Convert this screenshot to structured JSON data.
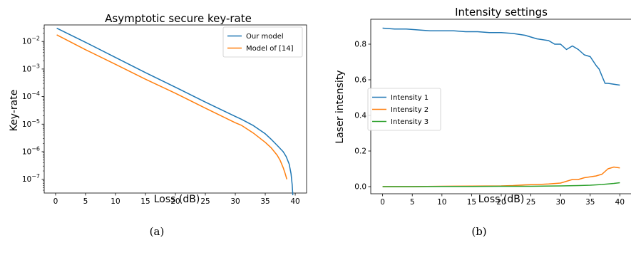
{
  "chart_data": [
    {
      "type": "line",
      "title": "Asymptotic secure key-rate",
      "xlabel": "Loss (dB)",
      "ylabel": "Key-rate",
      "xlim": [
        -1.9,
        41.9
      ],
      "ylim_log10": [
        -7.5,
        -1.4
      ],
      "yscale": "log",
      "x_ticks": [
        "0",
        "5",
        "10",
        "15",
        "20",
        "25",
        "30",
        "35",
        "40"
      ],
      "y_ticks": [
        "10^-7",
        "10^-6",
        "10^-5",
        "10^-4",
        "10^-3",
        "10^-2"
      ],
      "legend_position": "upper right",
      "caption": "(a)",
      "series": [
        {
          "name": "Our model",
          "color": "#1f77b4",
          "x": [
            0.2,
            5,
            10,
            15,
            20,
            25,
            30,
            31,
            33,
            35,
            36,
            37,
            38,
            38.5,
            39,
            39.3,
            39.5,
            39.6
          ],
          "y_log10": [
            -1.52,
            -2.03,
            -2.58,
            -3.13,
            -3.66,
            -4.2,
            -4.72,
            -4.82,
            -5.05,
            -5.35,
            -5.55,
            -5.77,
            -6.0,
            -6.18,
            -6.45,
            -6.8,
            -7.2,
            -7.58
          ]
        },
        {
          "name": "Model of [14]",
          "color": "#ff7f0e",
          "x": [
            0.2,
            5,
            10,
            15,
            20,
            25,
            30,
            31,
            33,
            35,
            36,
            37,
            37.5,
            38,
            38.3,
            38.6
          ],
          "y_log10": [
            -1.76,
            -2.3,
            -2.83,
            -3.37,
            -3.88,
            -4.42,
            -4.95,
            -5.04,
            -5.32,
            -5.66,
            -5.86,
            -6.13,
            -6.32,
            -6.58,
            -6.78,
            -7.0
          ]
        }
      ]
    },
    {
      "type": "line",
      "title": "Intensity settings",
      "xlabel": "Loss (dB)",
      "ylabel": "Laser intensity",
      "xlim": [
        -2,
        42
      ],
      "ylim": [
        -0.04,
        0.94
      ],
      "x_ticks": [
        "0",
        "5",
        "10",
        "15",
        "20",
        "25",
        "30",
        "35",
        "40"
      ],
      "y_ticks": [
        "0.0",
        "0.2",
        "0.4",
        "0.6",
        "0.8"
      ],
      "legend_position": "center left",
      "caption": "(b)",
      "series": [
        {
          "name": "Intensity 1",
          "color": "#1f77b4",
          "x": [
            0,
            2,
            4,
            6,
            8,
            10,
            12,
            14,
            16,
            18,
            20,
            22,
            24,
            26,
            28,
            29,
            30,
            31,
            32,
            33,
            34,
            35,
            36,
            36.5,
            37,
            37.5,
            38,
            39,
            40
          ],
          "y": [
            0.89,
            0.885,
            0.885,
            0.88,
            0.875,
            0.875,
            0.875,
            0.87,
            0.87,
            0.865,
            0.865,
            0.86,
            0.85,
            0.83,
            0.82,
            0.8,
            0.8,
            0.77,
            0.79,
            0.77,
            0.74,
            0.73,
            0.68,
            0.66,
            0.62,
            0.58,
            0.58,
            0.575,
            0.57
          ]
        },
        {
          "name": "Intensity 2",
          "color": "#ff7f0e",
          "x": [
            0,
            5,
            10,
            15,
            20,
            22,
            24,
            26,
            28,
            30,
            31,
            32,
            33,
            34,
            35,
            36,
            37,
            38,
            39,
            40
          ],
          "y": [
            0.0,
            0.0,
            0.002,
            0.003,
            0.004,
            0.006,
            0.01,
            0.012,
            0.015,
            0.02,
            0.03,
            0.04,
            0.04,
            0.05,
            0.055,
            0.06,
            0.07,
            0.1,
            0.11,
            0.105
          ]
        },
        {
          "name": "Intensity 3",
          "color": "#2ca02c",
          "x": [
            0,
            5,
            10,
            15,
            20,
            25,
            30,
            33,
            35,
            37,
            38,
            39,
            40
          ],
          "y": [
            0.0,
            0.0,
            0.001,
            0.001,
            0.002,
            0.002,
            0.004,
            0.006,
            0.008,
            0.012,
            0.015,
            0.018,
            0.022
          ]
        }
      ]
    }
  ]
}
